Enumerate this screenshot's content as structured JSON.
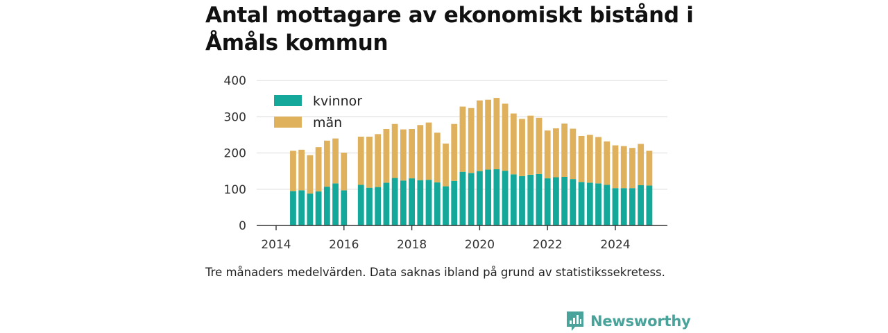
{
  "title": "Antal mottagare av ekonomiskt bistånd i Åmåls kommun",
  "caption": "Tre månaders medelvärden. Data saknas ibland på grund av statistikssekretess.",
  "brand": {
    "name": "Newsworthy",
    "icon": "newsworthy-chart-logo-icon",
    "color": "#4aa39a"
  },
  "chart_data": {
    "type": "bar",
    "stacked": true,
    "x_axis_type": "date",
    "x_ticks": [
      "2014",
      "2016",
      "2018",
      "2020",
      "2022",
      "2024"
    ],
    "y_ticks": [
      0,
      100,
      200,
      300,
      400
    ],
    "ylim": [
      0,
      400
    ],
    "grid": "horizontal",
    "legend_position": "top-left",
    "x": [
      "2014-07",
      "2014-10",
      "2015-01",
      "2015-04",
      "2015-07",
      "2015-10",
      "2016-01",
      "2016-04",
      "2016-07",
      "2016-10",
      "2017-01",
      "2017-04",
      "2017-07",
      "2017-10",
      "2018-01",
      "2018-04",
      "2018-07",
      "2018-10",
      "2019-01",
      "2019-04",
      "2019-07",
      "2019-10",
      "2020-01",
      "2020-04",
      "2020-07",
      "2020-10",
      "2021-01",
      "2021-04",
      "2021-07",
      "2021-10",
      "2022-01",
      "2022-04",
      "2022-07",
      "2022-10",
      "2023-01",
      "2023-04",
      "2023-07",
      "2023-10",
      "2024-01",
      "2024-04",
      "2024-07",
      "2024-10",
      "2025-01"
    ],
    "series": [
      {
        "name": "kvinnor",
        "color": "#14a89a",
        "values": [
          95,
          97,
          88,
          94,
          107,
          116,
          97,
          null,
          112,
          104,
          106,
          118,
          131,
          124,
          130,
          125,
          126,
          119,
          108,
          123,
          148,
          145,
          150,
          154,
          155,
          151,
          141,
          136,
          140,
          142,
          130,
          133,
          134,
          128,
          120,
          118,
          116,
          112,
          103,
          103,
          103,
          111,
          110
        ]
      },
      {
        "name": "män",
        "color": "#dfb15d",
        "values": [
          111,
          112,
          106,
          122,
          127,
          124,
          104,
          null,
          133,
          141,
          146,
          148,
          149,
          141,
          136,
          152,
          158,
          137,
          118,
          157,
          180,
          179,
          195,
          193,
          197,
          185,
          168,
          158,
          163,
          155,
          132,
          135,
          147,
          139,
          127,
          132,
          128,
          120,
          118,
          116,
          111,
          114,
          96
        ]
      }
    ]
  }
}
